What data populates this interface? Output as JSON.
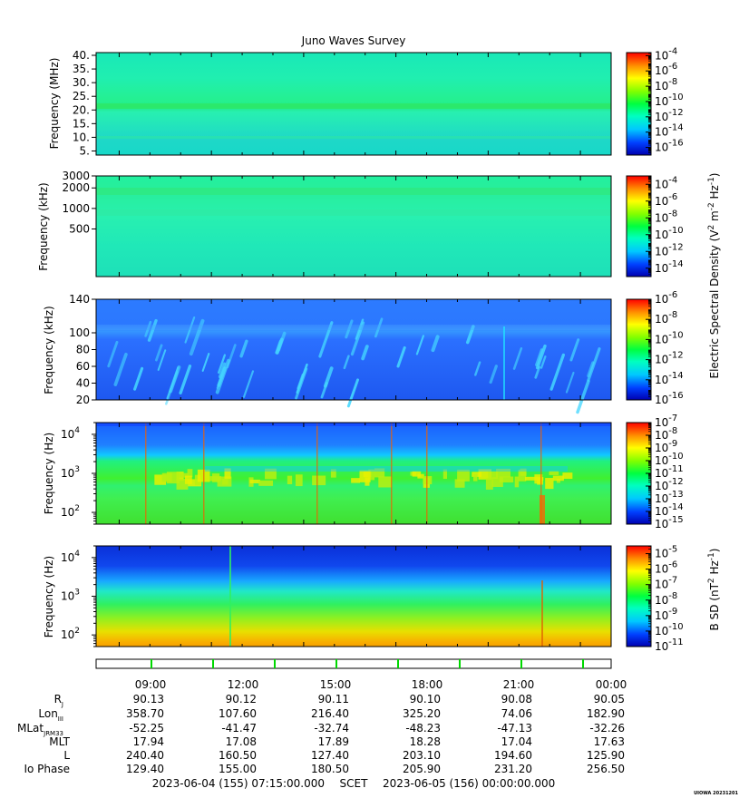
{
  "title": "Juno Waves Survey",
  "footer": {
    "start": "2023-06-04 (155) 07:15:00.000",
    "scet": "SCET",
    "end": "2023-06-05 (156) 00:00:00.000",
    "credit": "UIOWA 20231201"
  },
  "ephemeris": {
    "labels": [
      {
        "main": "R",
        "sub": "J"
      },
      {
        "main": "Lon",
        "sub": "III"
      },
      {
        "main": "MLat",
        "sub": "JRM33"
      },
      {
        "main": "MLT",
        "sub": ""
      },
      {
        "main": "L",
        "sub": ""
      },
      {
        "main": "Io Phase",
        "sub": ""
      }
    ],
    "times": [
      "09:00",
      "12:00",
      "15:00",
      "18:00",
      "21:00",
      "00:00"
    ],
    "rows": [
      [
        "90.13",
        "90.12",
        "90.11",
        "90.10",
        "90.08",
        "90.05"
      ],
      [
        "358.70",
        "107.60",
        "216.40",
        "325.20",
        "74.06",
        "182.90"
      ],
      [
        "-52.25",
        "-41.47",
        "-32.74",
        "-48.23",
        "-47.13",
        "-32.26"
      ],
      [
        "17.94",
        "17.08",
        "17.89",
        "18.28",
        "17.04",
        "17.63"
      ],
      [
        "240.40",
        "160.50",
        "127.40",
        "203.10",
        "194.60",
        "125.90"
      ],
      [
        "129.40",
        "155.00",
        "180.50",
        "205.90",
        "231.20",
        "256.50"
      ]
    ]
  },
  "chart_data": [
    {
      "type": "heatmap",
      "ylabel": "Frequency (MHz)",
      "yticks": [
        "40.",
        "35.",
        "30.",
        "25.",
        "20.",
        "15.",
        "10.",
        "5."
      ],
      "ylim": [
        3.5,
        41
      ],
      "colorbar": {
        "ticks": [
          "-4",
          "-6",
          "-8",
          "-10",
          "-12",
          "-14",
          "-16"
        ],
        "range": [
          -17,
          -3.6
        ]
      }
    },
    {
      "type": "heatmap",
      "ylabel": "Frequency (kHz)",
      "yticks": [
        "3000",
        "2000",
        "1000",
        "500"
      ],
      "ylim": [
        100,
        3000
      ],
      "colorbar": {
        "ticks": [
          "-4",
          "-6",
          "-8",
          "-10",
          "-12",
          "-14"
        ],
        "range": [
          -15,
          -3
        ]
      }
    },
    {
      "type": "heatmap",
      "ylabel": "Frequency (kHz)",
      "yticks": [
        "140",
        "100",
        "80",
        "60",
        "40",
        "20"
      ],
      "ylim": [
        20,
        140
      ],
      "colorbar": {
        "ticks": [
          "-6",
          "-8",
          "-10",
          "-12",
          "-14",
          "-16"
        ],
        "range": [
          -16,
          -6
        ]
      }
    },
    {
      "type": "heatmap",
      "ylabel": "Frequency (Hz)",
      "yticks": [
        "4",
        "3",
        "2"
      ],
      "ylim": [
        50,
        20000
      ],
      "colorbar": {
        "ticks": [
          "-7",
          "-8",
          "-9",
          "-10",
          "-11",
          "-12",
          "-13",
          "-14",
          "-15"
        ],
        "range": [
          -15,
          -7
        ]
      }
    },
    {
      "type": "heatmap",
      "ylabel": "Frequency (Hz)",
      "yticks": [
        "4",
        "3",
        "2"
      ],
      "ylim": [
        50,
        20000
      ],
      "colorbar": {
        "ticks": [
          "-5",
          "-6",
          "-7",
          "-8",
          "-9",
          "-10",
          "-11"
        ],
        "range": [
          -11,
          -4.5
        ]
      }
    }
  ],
  "colorbar_labels": {
    "electric_main": "Electric Spectral Density (V",
    "electric_sup1": "2",
    "electric_mid": " m",
    "electric_sup2": "-2",
    "electric_mid2": " Hz",
    "electric_sup3": "-1",
    "electric_end": ")",
    "magnetic_main": "B SD (nT",
    "magnetic_sup1": "2",
    "magnetic_mid": " Hz",
    "magnetic_sup2": "-1",
    "magnetic_end": ")",
    "tick_base": "10"
  },
  "colors": {
    "low": "#0000c0",
    "mid": "#00ff66",
    "high": "#ff0000"
  }
}
